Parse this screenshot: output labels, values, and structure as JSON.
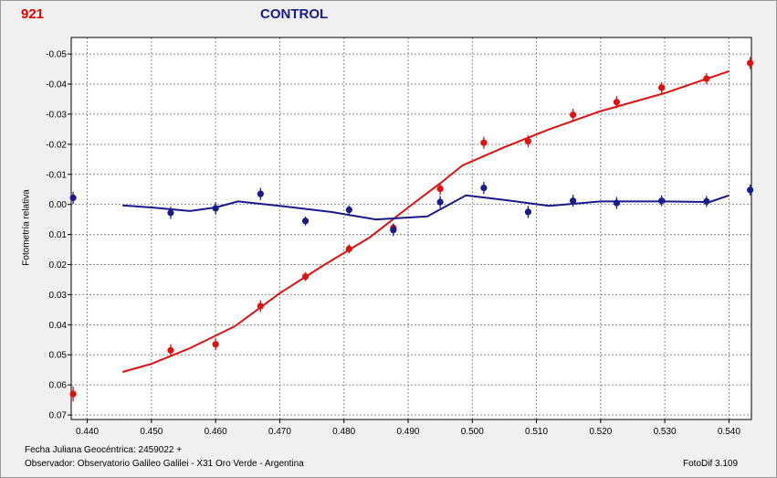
{
  "header": {
    "object_label": "921",
    "series_label": "CONTROL",
    "object_label_color": "#e00000",
    "series_label_color": "#1a1a8a"
  },
  "footer": {
    "date_text": "Fecha Juliana Geocéntrica: 2459022 +",
    "observer_text": "Observador: Observatorio Galileo Galilei - X31 Oro Verde - Argentina",
    "software_text": "FotoDif 3.109"
  },
  "chart_data": {
    "type": "scatter",
    "title": "",
    "xlabel": "",
    "ylabel": "Fotometría relativa",
    "xlim": [
      0.4375,
      0.5435
    ],
    "ylim": [
      -0.0555,
      0.0715
    ],
    "y_inverted": true,
    "grid": true,
    "x_ticks": [
      0.44,
      0.45,
      0.46,
      0.47,
      0.48,
      0.49,
      0.5,
      0.51,
      0.52,
      0.53,
      0.54
    ],
    "x_tick_labels": [
      "0.440",
      "0.450",
      "0.460",
      "0.470",
      "0.480",
      "0.490",
      "0.500",
      "0.510",
      "0.520",
      "0.530",
      "0.540"
    ],
    "y_ticks": [
      -0.05,
      -0.04,
      -0.03,
      -0.02,
      -0.01,
      0.0,
      0.01,
      0.02,
      0.03,
      0.04,
      0.05,
      0.06,
      0.07
    ],
    "y_tick_labels": [
      "-0.05",
      "-0.04",
      "-0.03",
      "-0.02",
      "-0.01",
      "0.00",
      "0.01",
      "0.02",
      "0.03",
      "0.04",
      "0.05",
      "0.06",
      "0.07"
    ],
    "series": [
      {
        "color": "#e01010",
        "points": [
          {
            "x": 0.4378,
            "y": 0.063,
            "err": 0.0025
          },
          {
            "x": 0.453,
            "y": 0.0485,
            "err": 0.002
          },
          {
            "x": 0.46,
            "y": 0.0465,
            "err": 0.002
          },
          {
            "x": 0.467,
            "y": 0.0338,
            "err": 0.002
          },
          {
            "x": 0.474,
            "y": 0.024,
            "err": 0.0015
          },
          {
            "x": 0.4808,
            "y": 0.0148,
            "err": 0.0015
          },
          {
            "x": 0.4877,
            "y": 0.0078,
            "err": 0.0015
          },
          {
            "x": 0.495,
            "y": -0.0052,
            "err": 0.002
          },
          {
            "x": 0.5018,
            "y": -0.0205,
            "err": 0.002
          },
          {
            "x": 0.5087,
            "y": -0.021,
            "err": 0.002
          },
          {
            "x": 0.5157,
            "y": -0.0298,
            "err": 0.002
          },
          {
            "x": 0.5225,
            "y": -0.034,
            "err": 0.002
          },
          {
            "x": 0.5295,
            "y": -0.0388,
            "err": 0.0018
          },
          {
            "x": 0.5365,
            "y": -0.0418,
            "err": 0.0018
          },
          {
            "x": 0.5433,
            "y": -0.047,
            "err": 0.002
          }
        ],
        "fit": [
          [
            0.4455,
            0.0557
          ],
          [
            0.45,
            0.053
          ],
          [
            0.456,
            0.0478
          ],
          [
            0.463,
            0.0405
          ],
          [
            0.47,
            0.0295
          ],
          [
            0.477,
            0.02
          ],
          [
            0.484,
            0.011
          ],
          [
            0.49,
            0.001
          ],
          [
            0.495,
            -0.007
          ],
          [
            0.4985,
            -0.013
          ],
          [
            0.505,
            -0.019
          ],
          [
            0.512,
            -0.025
          ],
          [
            0.52,
            -0.031
          ],
          [
            0.53,
            -0.037
          ],
          [
            0.54,
            -0.0443
          ]
        ]
      },
      {
        "color": "#1a1a8a",
        "points": [
          {
            "x": 0.4378,
            "y": -0.0022,
            "err": 0.002
          },
          {
            "x": 0.453,
            "y": 0.0028,
            "err": 0.002
          },
          {
            "x": 0.46,
            "y": 0.0013,
            "err": 0.002
          },
          {
            "x": 0.467,
            "y": -0.0035,
            "err": 0.002
          },
          {
            "x": 0.474,
            "y": 0.0055,
            "err": 0.0015
          },
          {
            "x": 0.4808,
            "y": 0.0018,
            "err": 0.0015
          },
          {
            "x": 0.4877,
            "y": 0.0085,
            "err": 0.002
          },
          {
            "x": 0.495,
            "y": -0.0008,
            "err": 0.002
          },
          {
            "x": 0.5018,
            "y": -0.0055,
            "err": 0.002
          },
          {
            "x": 0.5087,
            "y": 0.0025,
            "err": 0.002
          },
          {
            "x": 0.5157,
            "y": -0.0012,
            "err": 0.002
          },
          {
            "x": 0.5225,
            "y": -0.0005,
            "err": 0.002
          },
          {
            "x": 0.5295,
            "y": -0.0012,
            "err": 0.0018
          },
          {
            "x": 0.5365,
            "y": -0.001,
            "err": 0.0018
          },
          {
            "x": 0.5433,
            "y": -0.0048,
            "err": 0.0018
          }
        ],
        "fit": [
          [
            0.4455,
            0.0003
          ],
          [
            0.45,
            0.001
          ],
          [
            0.456,
            0.0022
          ],
          [
            0.46,
            0.001
          ],
          [
            0.4635,
            -0.001
          ],
          [
            0.47,
            0.0005
          ],
          [
            0.478,
            0.0025
          ],
          [
            0.485,
            0.005
          ],
          [
            0.493,
            0.004
          ],
          [
            0.499,
            -0.003
          ],
          [
            0.505,
            -0.0015
          ],
          [
            0.512,
            0.0005
          ],
          [
            0.52,
            -0.001
          ],
          [
            0.53,
            -0.001
          ],
          [
            0.537,
            -0.0008
          ],
          [
            0.54,
            -0.003
          ]
        ]
      }
    ]
  }
}
